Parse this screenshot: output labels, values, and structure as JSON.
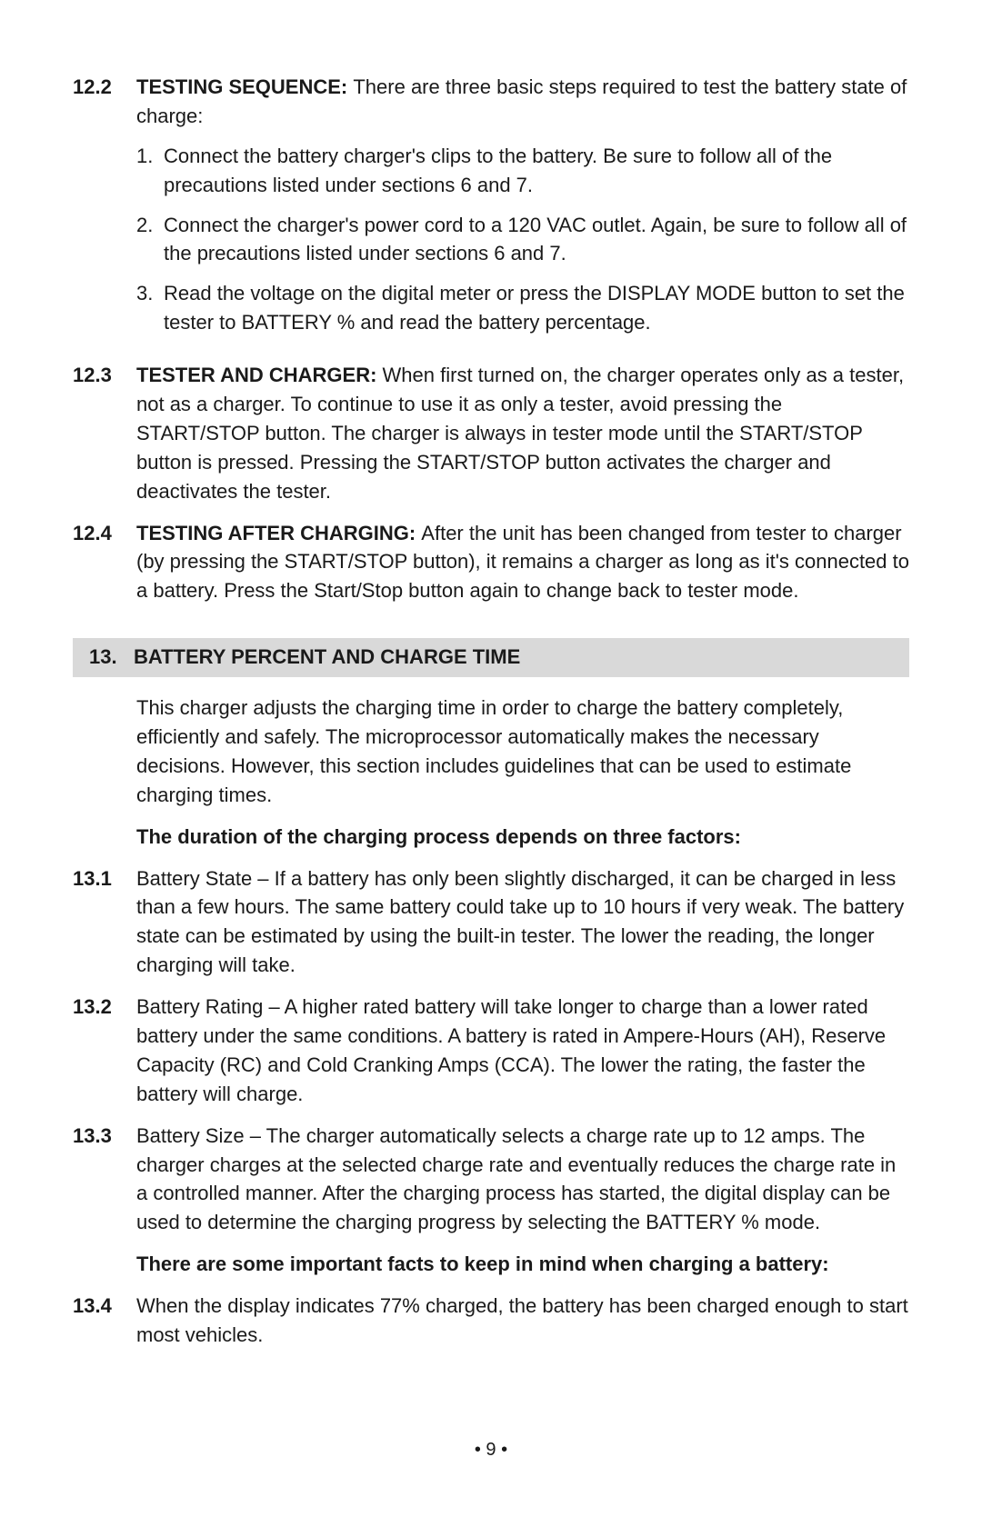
{
  "page_number": "• 9 •",
  "block_a": {
    "entries": [
      {
        "num": "12.2",
        "head": "TESTING SEQUENCE: ",
        "text": "There are three basic steps required to test the battery state of charge:",
        "sublist": [
          {
            "num": "1.",
            "text": "Connect the battery charger's clips to the battery. Be sure to follow all of the precautions listed under sections 6 and 7."
          },
          {
            "num": "2.",
            "text": "Connect the charger's power cord to a 120 VAC outlet. Again, be sure to follow all of the precautions listed under sections 6 and 7."
          },
          {
            "num": "3.",
            "text": "Read the voltage on the digital meter or press the DISPLAY MODE button to set the tester to BATTERY % and read the battery percentage."
          }
        ]
      },
      {
        "num": "12.3",
        "head": "TESTER AND CHARGER: ",
        "text": "When first turned on, the charger operates only as a tester, not as a charger. To continue to use it as only a tester, avoid pressing the START/STOP button. The charger is always in tester mode until the START/STOP button is pressed. Pressing the START/STOP button activates the charger and deactivates the tester."
      },
      {
        "num": "12.4",
        "head": "TESTING AFTER CHARGING: ",
        "text": "After the unit has been changed from tester to charger (by pressing the START/STOP button), it remains a charger as long as it's connected to a battery. Press the Start/Stop button again to change back to tester mode."
      }
    ]
  },
  "heading13": {
    "num": "13.",
    "title": "BATTERY PERCENT AND CHARGE TIME"
  },
  "block_b": {
    "intro": "This charger adjusts the charging time in order to charge the battery completely, efficiently and safely. The microprocessor automatically makes the necessary decisions. However, this section includes guidelines that can be used to estimate charging times.",
    "factors_lead": "The duration of the charging process depends on three factors:",
    "entries": [
      {
        "num": "13.1",
        "text": "Battery State – If a battery has only been slightly discharged, it can be charged in less than a few hours. The same battery could take up to 10 hours if very weak. The battery state can be estimated by using the built-in tester. The lower the reading, the longer charging will take."
      },
      {
        "num": "13.2",
        "text": "Battery Rating – A higher rated battery will take longer to charge than a lower rated battery under the same conditions. A battery is rated in Ampere-Hours (AH), Reserve Capacity (RC) and Cold Cranking Amps (CCA). The lower the rating, the faster the battery will charge."
      },
      {
        "num": "13.3",
        "text": "Battery Size – The charger automatically selects a charge rate up to 12 amps. The charger charges at the selected charge rate and eventually reduces the charge rate in a controlled manner. After the charging process has started, the digital display can be used to determine the charging progress by selecting the BATTERY % mode."
      }
    ],
    "facts_lead": "There are some important facts to keep in mind when charging a battery:",
    "entry134": {
      "num": "13.4",
      "text": "When the display indicates 77% charged, the battery has been charged enough to start most vehicles."
    }
  }
}
